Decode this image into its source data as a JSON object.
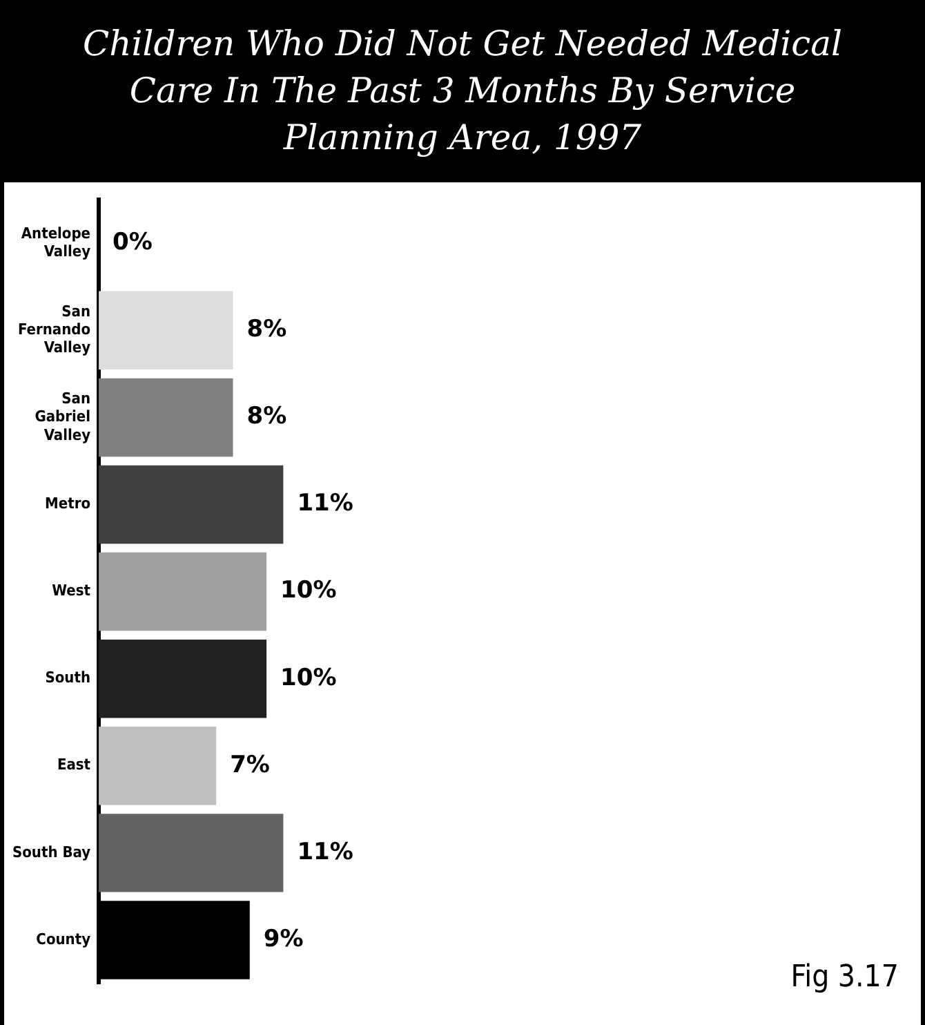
{
  "chart_data": {
    "type": "bar",
    "orientation": "horizontal",
    "title": "Children Who Did Not Get Needed Medical Care In The Past 3 Months By Service Planning Area, 1997",
    "categories": [
      "Antelope Valley",
      "San Fernando Valley",
      "San Gabriel Valley",
      "Metro",
      "West",
      "South",
      "East",
      "South Bay",
      "County"
    ],
    "values": [
      0,
      8,
      8,
      11,
      10,
      10,
      7,
      11,
      9
    ],
    "colors": [
      "#ffffff",
      "#dddddd",
      "#808080",
      "#404040",
      "#a0a0a0",
      "#222222",
      "#c0c0c0",
      "#636363",
      "#000000"
    ],
    "value_labels": [
      "0%",
      "8%",
      "8%",
      "11%",
      "10%",
      "10%",
      "7%",
      "11%",
      "9%"
    ],
    "xlim": [
      0,
      49
    ],
    "legend": false,
    "tick_labels": "y",
    "annotations": [
      "Fig 3.17"
    ]
  }
}
